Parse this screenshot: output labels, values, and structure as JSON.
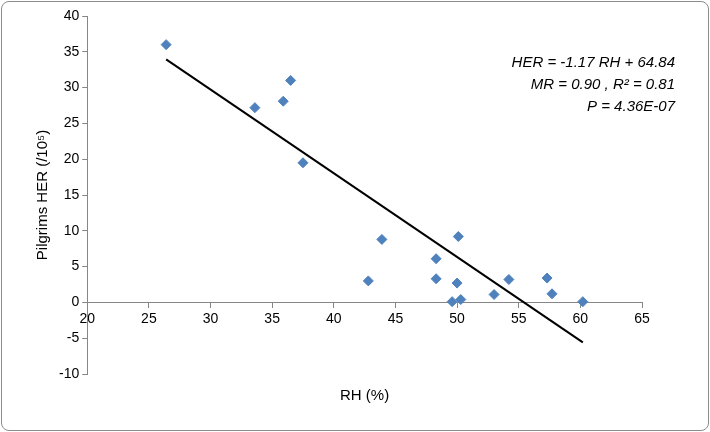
{
  "chart_data": {
    "type": "scatter",
    "x_label": "RH (%)",
    "y_label": "Pilgrims HER (/10⁵)",
    "annotations": [
      "HER = -1.17 RH + 64.84",
      "MR = 0.90 , R² = 0.81",
      "P = 4.36E-07"
    ],
    "xlim": [
      20,
      65
    ],
    "xticks": [
      20,
      25,
      30,
      35,
      40,
      45,
      50,
      55,
      60,
      65
    ],
    "ylim": [
      -10,
      40
    ],
    "yticks": [
      -10,
      -5,
      0,
      5,
      10,
      15,
      20,
      25,
      30,
      35,
      40
    ],
    "grid": false,
    "series": [
      {
        "type": "scatter",
        "color": "#4f81bd",
        "marker": "diamond",
        "x": [
          26.4,
          33.6,
          35.9,
          36.5,
          37.5,
          42.8,
          43.9,
          48.3,
          48.3,
          49.6,
          50.0,
          50.1,
          50.3,
          53.0,
          54.2,
          57.3,
          57.7,
          60.2
        ],
        "values": [
          36.0,
          27.2,
          28.1,
          31.0,
          19.5,
          3.0,
          8.8,
          6.1,
          3.3,
          0.1,
          2.7,
          9.2,
          0.4,
          1.1,
          3.2,
          3.4,
          1.2,
          0.1
        ]
      },
      {
        "type": "line",
        "color": "#000000",
        "marker": "none",
        "line_style": "solid",
        "x": [
          26.4,
          60.2
        ],
        "values": [
          33.95,
          -5.59
        ]
      }
    ]
  }
}
